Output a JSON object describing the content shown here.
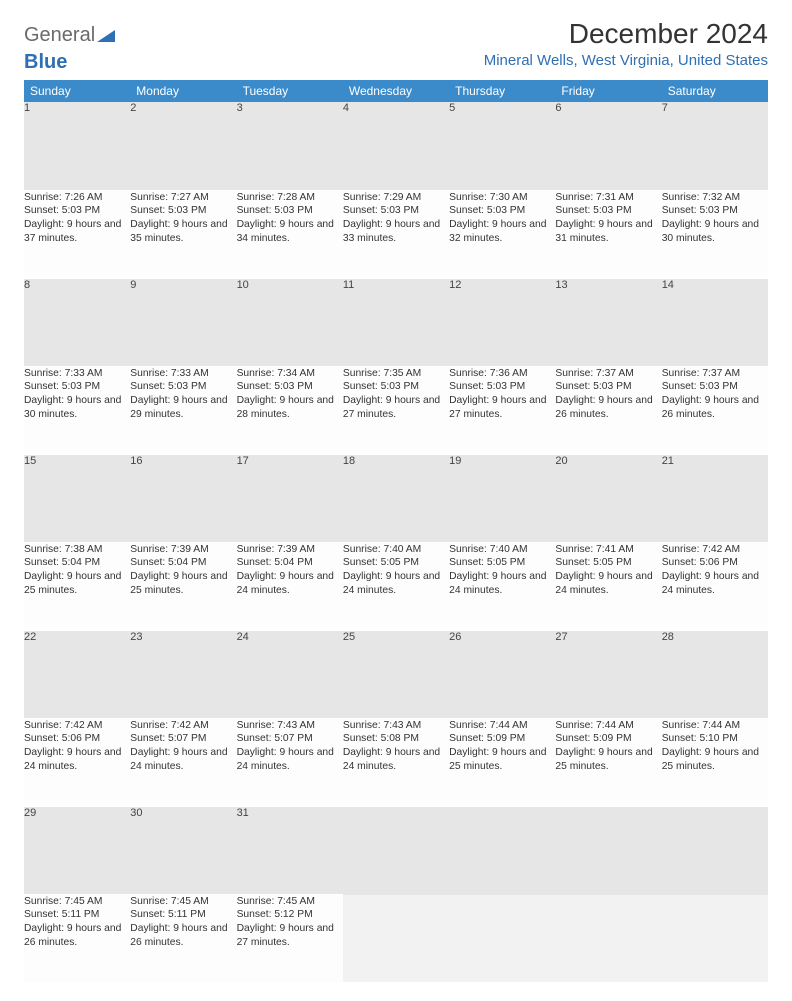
{
  "logo": {
    "part1": "General",
    "part2": "Blue"
  },
  "title": "December 2024",
  "location": "Mineral Wells, West Virginia, United States",
  "colors": {
    "header_bg": "#3b8bca",
    "header_text": "#ffffff",
    "daynum_bg": "#e6e6e6",
    "daynum_border": "#3b8bca",
    "location_color": "#2f6fb3",
    "text_color": "#333333"
  },
  "weekdays": [
    "Sunday",
    "Monday",
    "Tuesday",
    "Wednesday",
    "Thursday",
    "Friday",
    "Saturday"
  ],
  "weeks": [
    [
      {
        "n": "1",
        "sunrise": "7:26 AM",
        "sunset": "5:03 PM",
        "day_h": "9",
        "day_m": "37"
      },
      {
        "n": "2",
        "sunrise": "7:27 AM",
        "sunset": "5:03 PM",
        "day_h": "9",
        "day_m": "35"
      },
      {
        "n": "3",
        "sunrise": "7:28 AM",
        "sunset": "5:03 PM",
        "day_h": "9",
        "day_m": "34"
      },
      {
        "n": "4",
        "sunrise": "7:29 AM",
        "sunset": "5:03 PM",
        "day_h": "9",
        "day_m": "33"
      },
      {
        "n": "5",
        "sunrise": "7:30 AM",
        "sunset": "5:03 PM",
        "day_h": "9",
        "day_m": "32"
      },
      {
        "n": "6",
        "sunrise": "7:31 AM",
        "sunset": "5:03 PM",
        "day_h": "9",
        "day_m": "31"
      },
      {
        "n": "7",
        "sunrise": "7:32 AM",
        "sunset": "5:03 PM",
        "day_h": "9",
        "day_m": "30"
      }
    ],
    [
      {
        "n": "8",
        "sunrise": "7:33 AM",
        "sunset": "5:03 PM",
        "day_h": "9",
        "day_m": "30"
      },
      {
        "n": "9",
        "sunrise": "7:33 AM",
        "sunset": "5:03 PM",
        "day_h": "9",
        "day_m": "29"
      },
      {
        "n": "10",
        "sunrise": "7:34 AM",
        "sunset": "5:03 PM",
        "day_h": "9",
        "day_m": "28"
      },
      {
        "n": "11",
        "sunrise": "7:35 AM",
        "sunset": "5:03 PM",
        "day_h": "9",
        "day_m": "27"
      },
      {
        "n": "12",
        "sunrise": "7:36 AM",
        "sunset": "5:03 PM",
        "day_h": "9",
        "day_m": "27"
      },
      {
        "n": "13",
        "sunrise": "7:37 AM",
        "sunset": "5:03 PM",
        "day_h": "9",
        "day_m": "26"
      },
      {
        "n": "14",
        "sunrise": "7:37 AM",
        "sunset": "5:03 PM",
        "day_h": "9",
        "day_m": "26"
      }
    ],
    [
      {
        "n": "15",
        "sunrise": "7:38 AM",
        "sunset": "5:04 PM",
        "day_h": "9",
        "day_m": "25"
      },
      {
        "n": "16",
        "sunrise": "7:39 AM",
        "sunset": "5:04 PM",
        "day_h": "9",
        "day_m": "25"
      },
      {
        "n": "17",
        "sunrise": "7:39 AM",
        "sunset": "5:04 PM",
        "day_h": "9",
        "day_m": "24"
      },
      {
        "n": "18",
        "sunrise": "7:40 AM",
        "sunset": "5:05 PM",
        "day_h": "9",
        "day_m": "24"
      },
      {
        "n": "19",
        "sunrise": "7:40 AM",
        "sunset": "5:05 PM",
        "day_h": "9",
        "day_m": "24"
      },
      {
        "n": "20",
        "sunrise": "7:41 AM",
        "sunset": "5:05 PM",
        "day_h": "9",
        "day_m": "24"
      },
      {
        "n": "21",
        "sunrise": "7:42 AM",
        "sunset": "5:06 PM",
        "day_h": "9",
        "day_m": "24"
      }
    ],
    [
      {
        "n": "22",
        "sunrise": "7:42 AM",
        "sunset": "5:06 PM",
        "day_h": "9",
        "day_m": "24"
      },
      {
        "n": "23",
        "sunrise": "7:42 AM",
        "sunset": "5:07 PM",
        "day_h": "9",
        "day_m": "24"
      },
      {
        "n": "24",
        "sunrise": "7:43 AM",
        "sunset": "5:07 PM",
        "day_h": "9",
        "day_m": "24"
      },
      {
        "n": "25",
        "sunrise": "7:43 AM",
        "sunset": "5:08 PM",
        "day_h": "9",
        "day_m": "24"
      },
      {
        "n": "26",
        "sunrise": "7:44 AM",
        "sunset": "5:09 PM",
        "day_h": "9",
        "day_m": "25"
      },
      {
        "n": "27",
        "sunrise": "7:44 AM",
        "sunset": "5:09 PM",
        "day_h": "9",
        "day_m": "25"
      },
      {
        "n": "28",
        "sunrise": "7:44 AM",
        "sunset": "5:10 PM",
        "day_h": "9",
        "day_m": "25"
      }
    ],
    [
      {
        "n": "29",
        "sunrise": "7:45 AM",
        "sunset": "5:11 PM",
        "day_h": "9",
        "day_m": "26"
      },
      {
        "n": "30",
        "sunrise": "7:45 AM",
        "sunset": "5:11 PM",
        "day_h": "9",
        "day_m": "26"
      },
      {
        "n": "31",
        "sunrise": "7:45 AM",
        "sunset": "5:12 PM",
        "day_h": "9",
        "day_m": "27"
      },
      null,
      null,
      null,
      null
    ]
  ],
  "labels": {
    "sunrise": "Sunrise:",
    "sunset": "Sunset:",
    "daylight": "Daylight:",
    "hours": "hours",
    "and": "and",
    "minutes": "minutes."
  }
}
